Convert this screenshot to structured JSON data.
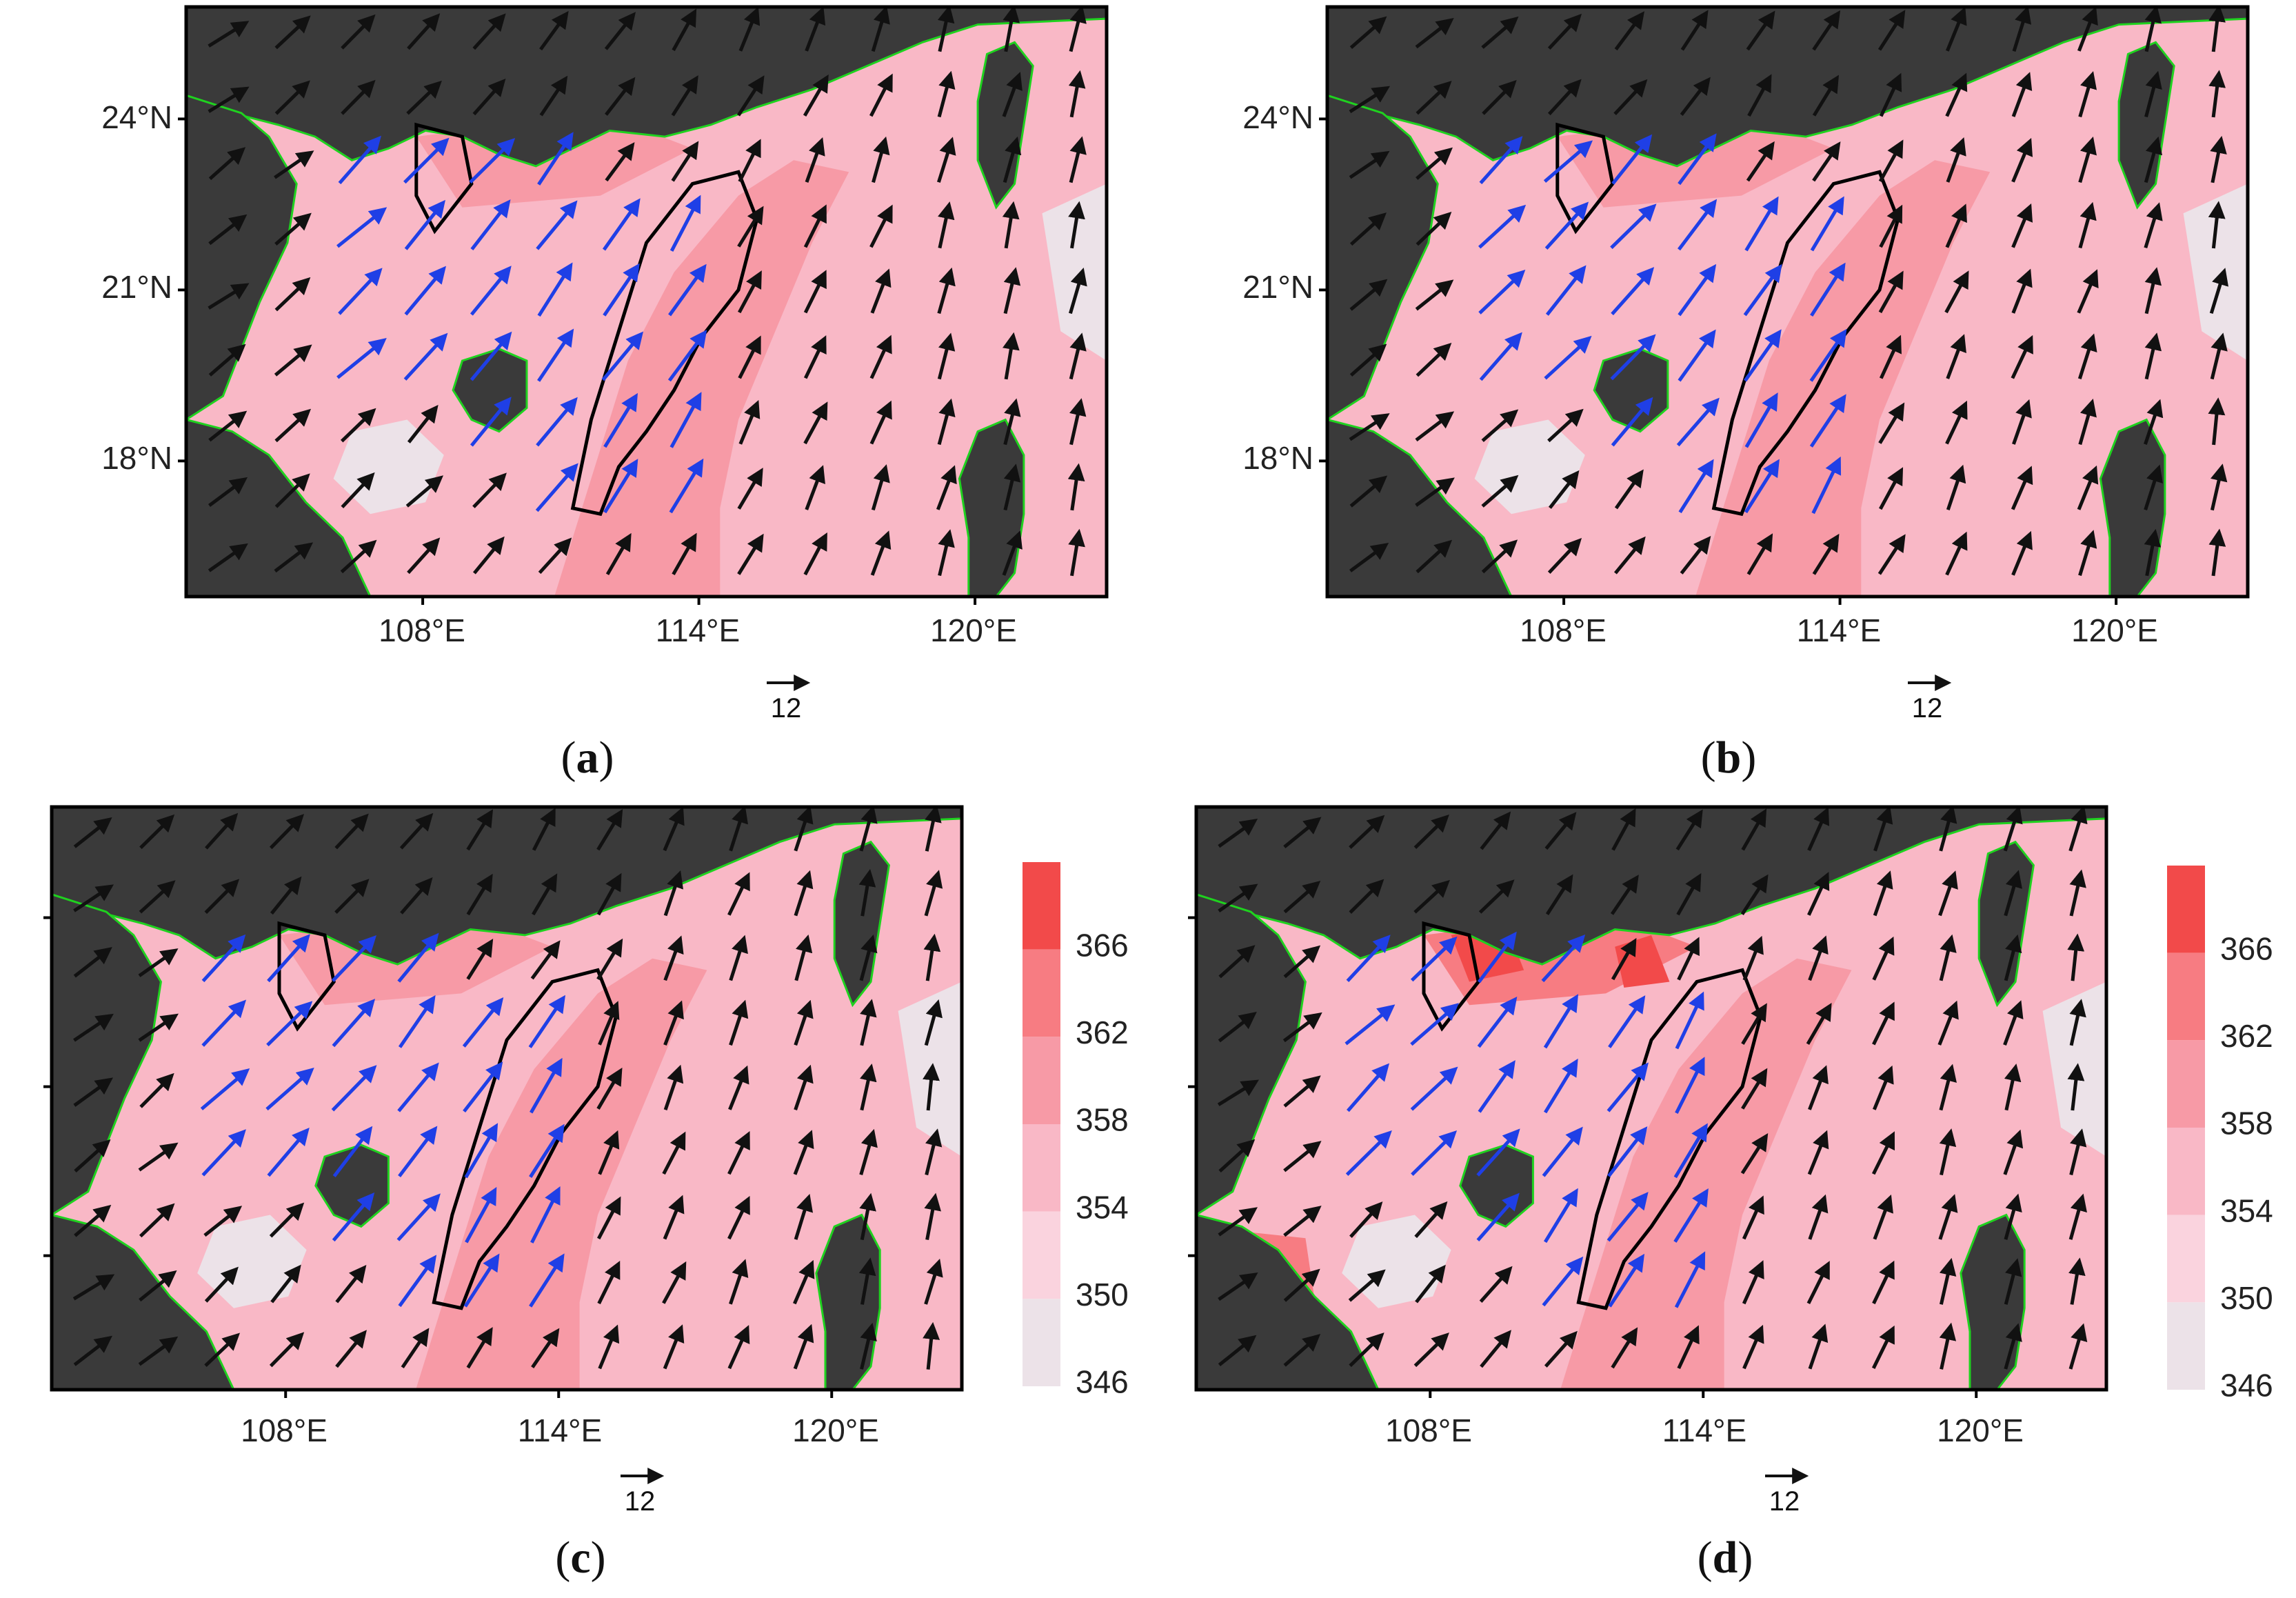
{
  "figure": {
    "colorbar": {
      "ticks": [
        "366",
        "362",
        "358",
        "354",
        "350",
        "346"
      ],
      "colors": [
        "#f24a4a",
        "#f77c82",
        "#f79aa6",
        "#f9b8c6",
        "#fad3de",
        "#ece2e8"
      ]
    },
    "colors": {
      "land": "#3a3a3a",
      "coast": "#1fd21f",
      "contour": "#000000",
      "wind_black": "#111111",
      "wind_blue": "#1f3fe6"
    },
    "panels": [
      {
        "id": "a",
        "label_open": "(",
        "label_letter": "a",
        "label_close": ")",
        "lon_ticks": [
          "108°E",
          "114°E",
          "120°E"
        ],
        "lat_ticks": [
          "24°N",
          "21°N",
          "18°N"
        ],
        "ref_vector": "12",
        "has_colorbar": false
      },
      {
        "id": "b",
        "label_open": "(",
        "label_letter": "b",
        "label_close": ")",
        "lon_ticks": [
          "108°E",
          "114°E",
          "120°E"
        ],
        "lat_ticks": [
          "24°N",
          "21°N",
          "18°N"
        ],
        "ref_vector": "12",
        "has_colorbar": false
      },
      {
        "id": "c",
        "label_open": "(",
        "label_letter": "c",
        "label_close": ")",
        "lon_ticks": [
          "108°E",
          "114°E",
          "120°E"
        ],
        "lat_ticks": [],
        "ref_vector": "12",
        "has_colorbar": true
      },
      {
        "id": "d",
        "label_open": "(",
        "label_letter": "d",
        "label_close": ")",
        "lon_ticks": [
          "108°E",
          "114°E",
          "120°E"
        ],
        "lat_ticks": [],
        "ref_vector": "12",
        "has_colorbar": true
      }
    ]
  }
}
